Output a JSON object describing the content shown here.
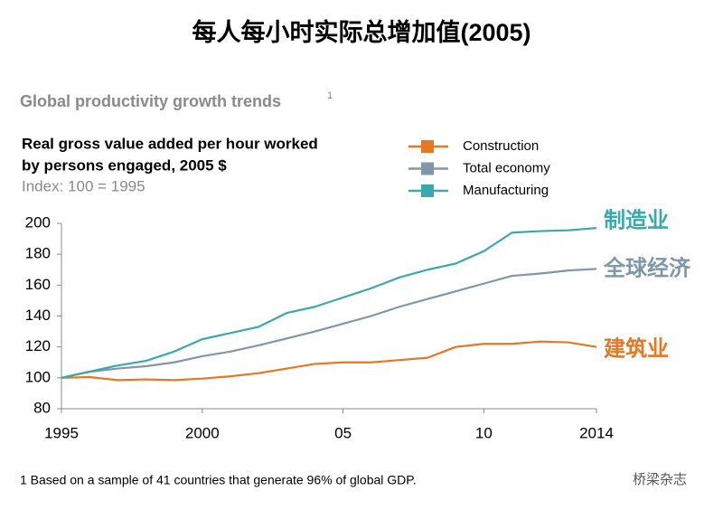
{
  "chart_data": {
    "type": "line",
    "header": "每人每小时实际总增加值(2005)",
    "subtitle": "Global productivity growth trends",
    "subtitle_note": "1",
    "title": [
      "Real gross value added per hour worked",
      "by persons engaged, 2005 $"
    ],
    "index_note": "Index: 100 = 1995",
    "x": [
      1995,
      1996,
      1997,
      1998,
      1999,
      2000,
      2001,
      2002,
      2003,
      2004,
      2005,
      2006,
      2007,
      2008,
      2009,
      2010,
      2011,
      2012,
      2013,
      2014
    ],
    "series": [
      {
        "name": "Construction",
        "color": "#e87722",
        "values": [
          100,
          100.5,
          98.5,
          99,
          98.5,
          99.5,
          101,
          103,
          106,
          109,
          110,
          110,
          111.5,
          113,
          120,
          122,
          122,
          123.5,
          123,
          120
        ]
      },
      {
        "name": "Total economy",
        "color": "#7f97a8",
        "values": [
          100,
          104,
          106,
          107.5,
          110,
          114,
          117,
          121,
          125.5,
          130,
          135,
          140,
          146,
          151,
          156,
          161,
          166,
          167.5,
          169.5,
          170.5
        ]
      },
      {
        "name": "Manufacturing",
        "color": "#3aa9ad",
        "values": [
          100,
          104,
          108,
          111,
          117,
          125,
          129,
          133,
          142,
          146,
          152,
          158,
          165,
          170,
          174,
          182,
          194,
          195,
          195.5,
          197
        ]
      }
    ],
    "annotations": [
      {
        "text": "制造业",
        "color": "#3aa9ad"
      },
      {
        "text": "全球经济",
        "color": "#7f97a8"
      },
      {
        "text": "建筑业",
        "color": "#e87722"
      }
    ],
    "xlim": [
      1995,
      2014
    ],
    "xticks": [
      1995,
      2000,
      {
        "value": 2005,
        "label": "05"
      },
      {
        "value": 2010,
        "label": "10"
      },
      2014
    ],
    "ylim": [
      80,
      200
    ],
    "yticks": [
      80,
      100,
      120,
      140,
      160,
      180,
      200
    ],
    "grid": false,
    "footnote": "1  Based on a sample of 41 countries that generate 96% of global GDP.",
    "watermark": "桥梁杂志"
  }
}
